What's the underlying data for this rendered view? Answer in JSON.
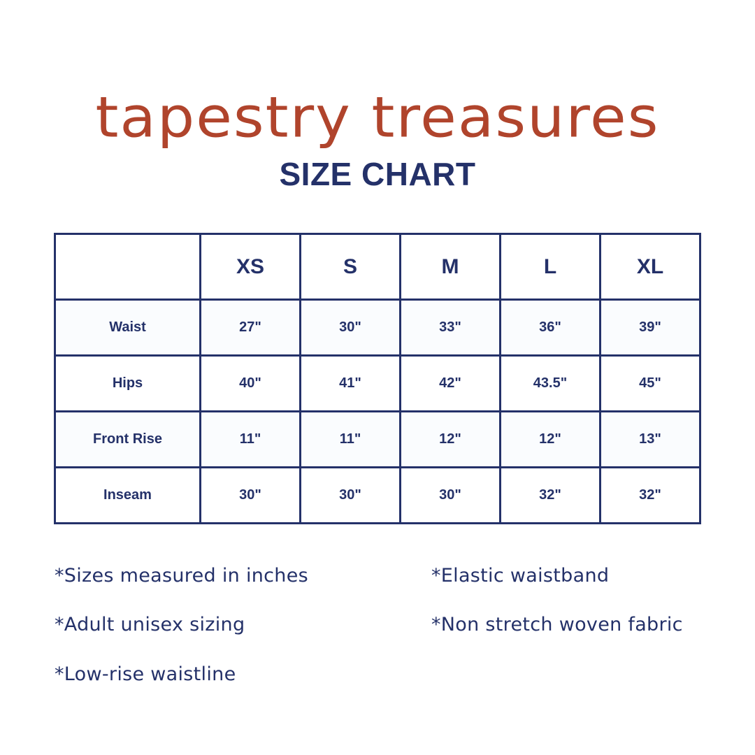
{
  "brand": "tapestry treasures",
  "title": "SIZE CHART",
  "table": {
    "headers": [
      "",
      "XS",
      "S",
      "M",
      "L",
      "XL"
    ],
    "rows": [
      {
        "label": "Waist",
        "values": [
          "27\"",
          "30\"",
          "33\"",
          "36\"",
          "39\""
        ]
      },
      {
        "label": "Hips",
        "values": [
          "40\"",
          "41\"",
          "42\"",
          "43.5\"",
          "45\""
        ]
      },
      {
        "label": "Front Rise",
        "values": [
          "11\"",
          "11\"",
          "12\"",
          "12\"",
          "13\""
        ]
      },
      {
        "label": "Inseam",
        "values": [
          "30\"",
          "30\"",
          "30\"",
          "32\"",
          "32\""
        ]
      }
    ]
  },
  "notes": {
    "left": [
      "*Sizes measured in inches",
      "*Adult unisex sizing",
      "*Low-rise waistline"
    ],
    "right": [
      "*Elastic waistband",
      "*Non stretch woven fabric"
    ]
  },
  "colors": {
    "navy": "#243169",
    "brand_red": "#b0442c",
    "row_shade": "#fafcfe"
  }
}
